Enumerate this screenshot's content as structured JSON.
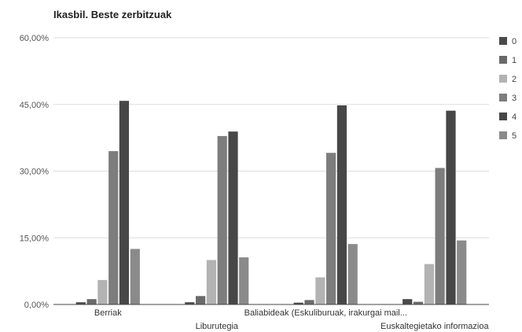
{
  "chart_data": {
    "type": "bar",
    "title": "Ikasbil. Beste zerbitzuak",
    "categories": [
      "Berriak",
      "Liburutegia",
      "Baliabideak (Eskuliburuak, irakurgai mail...",
      "Euskaltegietako informazioa"
    ],
    "series": [
      {
        "name": "0",
        "color": "#4a4a4a",
        "values": [
          0.5,
          0.5,
          0.4,
          1.2
        ]
      },
      {
        "name": "1",
        "color": "#6a6a6a",
        "values": [
          1.2,
          1.9,
          1.0,
          0.6
        ]
      },
      {
        "name": "2",
        "color": "#b3b3b3",
        "values": [
          5.5,
          10.0,
          6.1,
          9.1
        ]
      },
      {
        "name": "3",
        "color": "#7d7d7d",
        "values": [
          34.5,
          37.9,
          34.1,
          30.7
        ]
      },
      {
        "name": "4",
        "color": "#474747",
        "values": [
          45.8,
          38.9,
          44.8,
          43.6
        ]
      },
      {
        "name": "5",
        "color": "#8a8a8a",
        "values": [
          12.5,
          10.6,
          13.6,
          14.4
        ]
      }
    ],
    "yticks": [
      "0,00%",
      "15,00%",
      "30,00%",
      "45,00%",
      "60,00%"
    ],
    "ylim": [
      0,
      60
    ],
    "grid": true,
    "legend": "right"
  }
}
